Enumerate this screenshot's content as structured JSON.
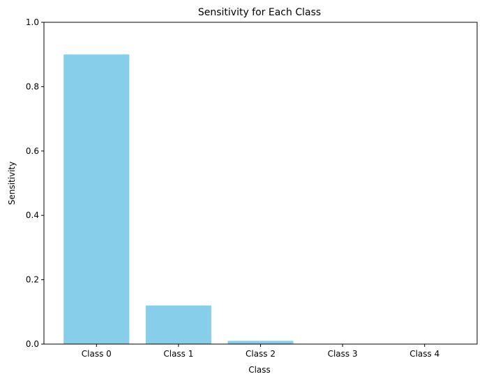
{
  "chart_data": {
    "type": "bar",
    "title": "Sensitivity for Each Class",
    "xlabel": "Class",
    "ylabel": "Sensitivity",
    "categories": [
      "Class 0",
      "Class 1",
      "Class 2",
      "Class 3",
      "Class 4"
    ],
    "values": [
      0.9,
      0.12,
      0.01,
      0.0,
      0.0
    ],
    "ylim": [
      0,
      1.0
    ],
    "yticks": [
      "0.0",
      "0.2",
      "0.4",
      "0.6",
      "0.8",
      "1.0"
    ],
    "bar_color": "#87CEEB",
    "grid": false
  }
}
